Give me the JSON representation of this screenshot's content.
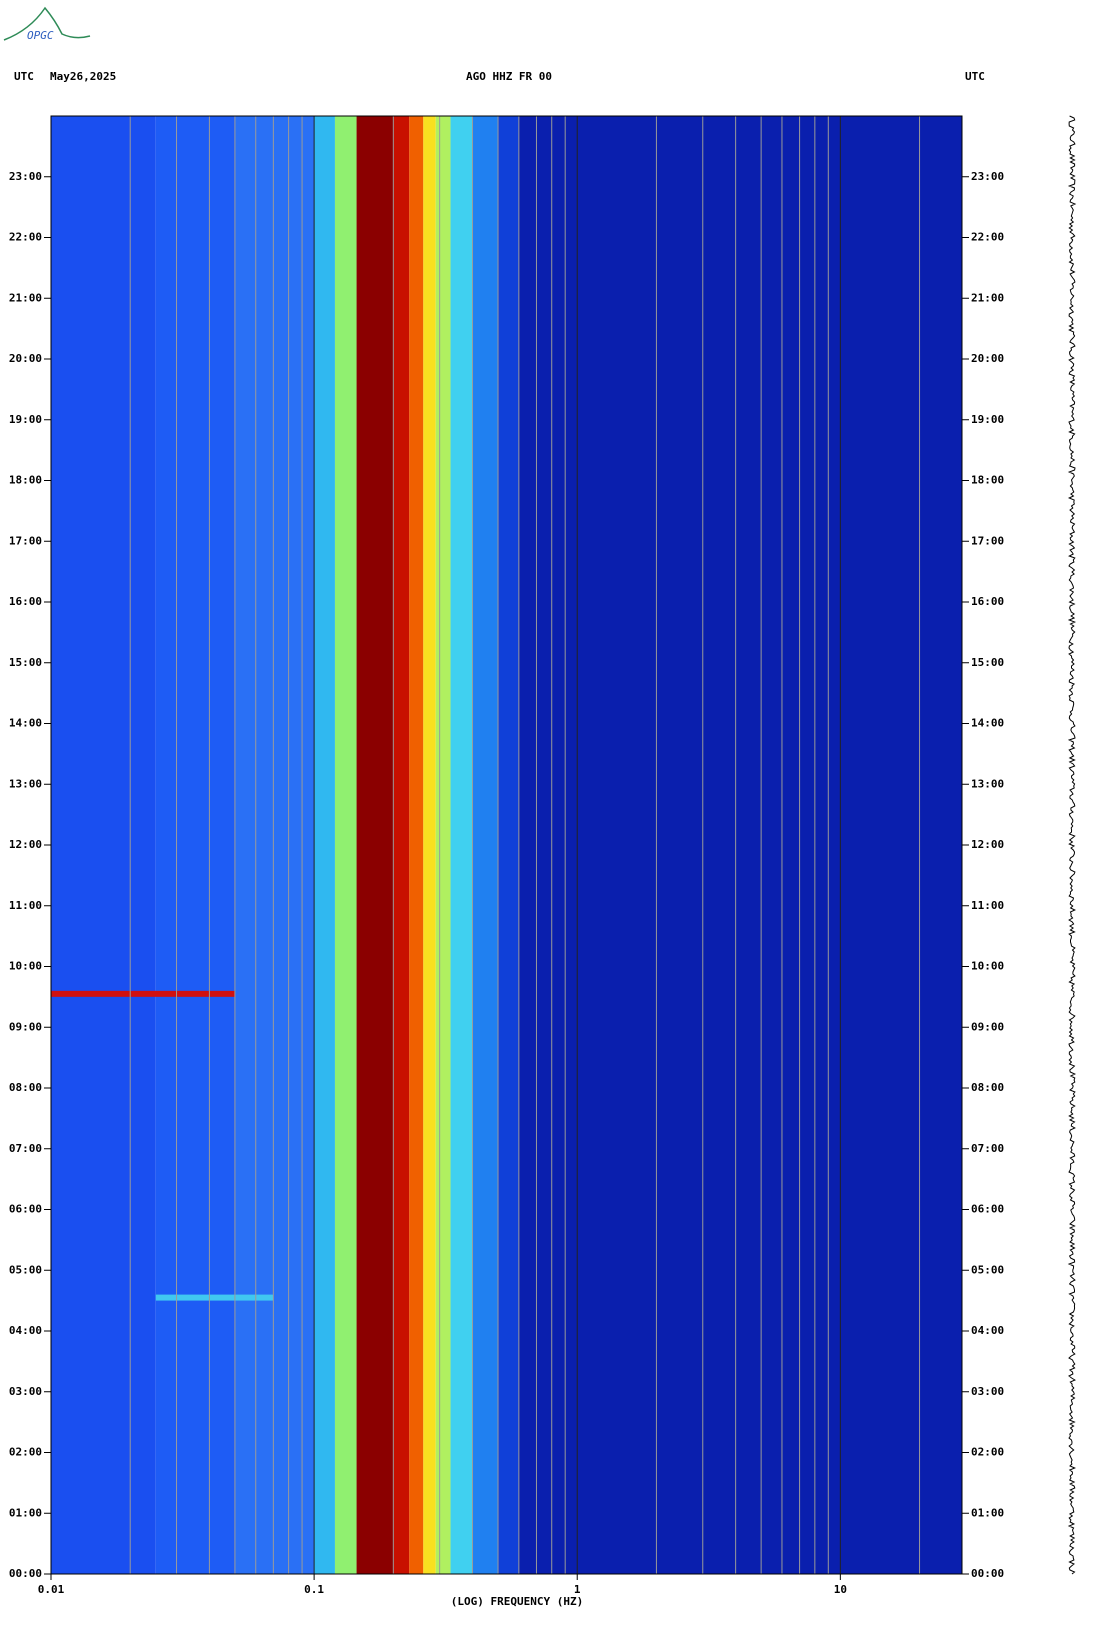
{
  "logo": "OPGC",
  "chart_data": {
    "type": "spectrogram",
    "title": "AGO HHZ FR 00",
    "left_header": [
      "UTC",
      "May26,2025"
    ],
    "right_header": "UTC",
    "xlabel": "(LOG) FREQUENCY (HZ)",
    "xscale": "log",
    "xlim": [
      0.01,
      29
    ],
    "xticks": [
      0.01,
      0.1,
      1,
      10
    ],
    "xgrid": [
      0.02,
      0.03,
      0.04,
      0.05,
      0.06,
      0.07,
      0.08,
      0.09,
      0.2,
      0.3,
      0.4,
      0.5,
      0.6,
      0.7,
      0.8,
      0.9,
      2,
      3,
      4,
      5,
      6,
      7,
      8,
      9,
      20
    ],
    "ylim": [
      0,
      24
    ],
    "yticks": [
      {
        "value": 0,
        "label": "00:00"
      },
      {
        "value": 1,
        "label": "01:00"
      },
      {
        "value": 2,
        "label": "02:00"
      },
      {
        "value": 3,
        "label": "03:00"
      },
      {
        "value": 4,
        "label": "04:00"
      },
      {
        "value": 5,
        "label": "05:00"
      },
      {
        "value": 6,
        "label": "06:00"
      },
      {
        "value": 7,
        "label": "07:00"
      },
      {
        "value": 8,
        "label": "08:00"
      },
      {
        "value": 9,
        "label": "09:00"
      },
      {
        "value": 10,
        "label": "10:00"
      },
      {
        "value": 11,
        "label": "11:00"
      },
      {
        "value": 12,
        "label": "12:00"
      },
      {
        "value": 13,
        "label": "13:00"
      },
      {
        "value": 14,
        "label": "14:00"
      },
      {
        "value": 15,
        "label": "15:00"
      },
      {
        "value": 16,
        "label": "16:00"
      },
      {
        "value": 17,
        "label": "17:00"
      },
      {
        "value": 18,
        "label": "18:00"
      },
      {
        "value": 19,
        "label": "19:00"
      },
      {
        "value": 20,
        "label": "20:00"
      },
      {
        "value": 21,
        "label": "21:00"
      },
      {
        "value": 22,
        "label": "22:00"
      },
      {
        "value": 23,
        "label": "23:00"
      }
    ],
    "bands": [
      {
        "from": 0.01,
        "to": 0.025,
        "color": "#1a4ff0"
      },
      {
        "from": 0.025,
        "to": 0.05,
        "color": "#1e5cf5"
      },
      {
        "from": 0.05,
        "to": 0.1,
        "color": "#2a70f5"
      },
      {
        "from": 0.1,
        "to": 0.12,
        "color": "#30b8f0"
      },
      {
        "from": 0.12,
        "to": 0.145,
        "color": "#90f070"
      },
      {
        "from": 0.145,
        "to": 0.2,
        "color": "#8b0000"
      },
      {
        "from": 0.2,
        "to": 0.23,
        "color": "#c81000"
      },
      {
        "from": 0.23,
        "to": 0.26,
        "color": "#f06000"
      },
      {
        "from": 0.26,
        "to": 0.29,
        "color": "#f8e020"
      },
      {
        "from": 0.29,
        "to": 0.33,
        "color": "#b0f060"
      },
      {
        "from": 0.33,
        "to": 0.4,
        "color": "#40d0f0"
      },
      {
        "from": 0.4,
        "to": 0.5,
        "color": "#2080f0"
      },
      {
        "from": 0.5,
        "to": 0.6,
        "color": "#1040d8"
      },
      {
        "from": 0.6,
        "to": 29,
        "color": "#0a1fae"
      }
    ],
    "events": [
      {
        "time": 9.55,
        "from": 0.01,
        "to": 0.05,
        "color": "#d01010"
      },
      {
        "time": 4.55,
        "from": 0.025,
        "to": 0.07,
        "color": "#40c8f0"
      }
    ]
  }
}
